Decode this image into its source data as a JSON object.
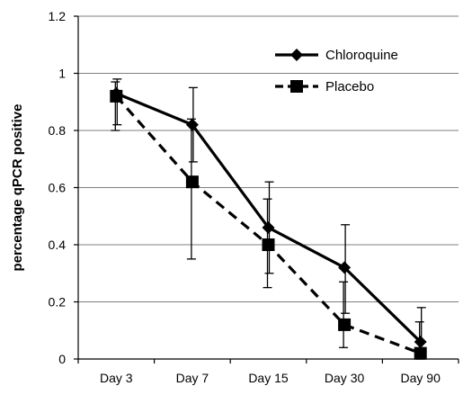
{
  "chart_data": {
    "type": "line",
    "title": "",
    "xlabel": "",
    "ylabel": "percentage  qPCR positive",
    "categories": [
      "Day 3",
      "Day 7",
      "Day 15",
      "Day 30",
      "Day 90"
    ],
    "ylim": [
      0,
      1.2
    ],
    "yticks": [
      0,
      0.2,
      0.4,
      0.6,
      0.8,
      1,
      1.2
    ],
    "ytick_labels": [
      "0",
      "0.2",
      "0.4",
      "0.6",
      "0.8",
      "1",
      "1.2"
    ],
    "grid": "horizontal",
    "legend_position": "top-right",
    "series": [
      {
        "name": "Chloroquine",
        "values": [
          0.93,
          0.82,
          0.46,
          0.32,
          0.06
        ],
        "error_low": [
          0.82,
          0.69,
          0.3,
          0.16,
          0.0
        ],
        "error_high": [
          0.98,
          0.95,
          0.62,
          0.47,
          0.18
        ],
        "marker": "diamond",
        "line_style": "solid",
        "color": "#000000"
      },
      {
        "name": "Placebo",
        "values": [
          0.92,
          0.62,
          0.4,
          0.12,
          0.02
        ],
        "error_low": [
          0.8,
          0.35,
          0.25,
          0.04,
          0.0
        ],
        "error_high": [
          0.97,
          0.84,
          0.56,
          0.27,
          0.13
        ],
        "marker": "square",
        "line_style": "dashed",
        "color": "#000000"
      }
    ]
  }
}
